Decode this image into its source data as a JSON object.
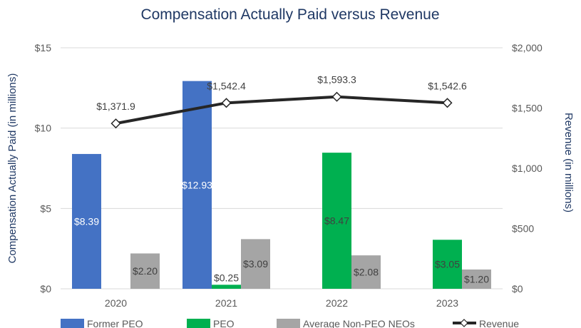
{
  "chart_data": {
    "type": "bar",
    "title": "Compensation Actually Paid versus Revenue",
    "ylabel": "Compensation Actually Paid (in millions)",
    "y2label": "Revenue (in millions)",
    "categories": [
      "2020",
      "2021",
      "2022",
      "2023"
    ],
    "ylim": [
      0,
      15
    ],
    "y2lim": [
      0,
      2000
    ],
    "yticks": [
      "$0",
      "$5",
      "$10",
      "$15"
    ],
    "y2ticks": [
      "$0",
      "$500",
      "$1,000",
      "$1,500",
      "$2,000"
    ],
    "grid": true,
    "legend_position": "bottom",
    "series": [
      {
        "name": "Former PEO",
        "type": "bar",
        "color": "#4472C4",
        "values": [
          8.39,
          12.93,
          null,
          null
        ],
        "labels": [
          "$8.39",
          "$12.93",
          "",
          ""
        ]
      },
      {
        "name": "PEO",
        "type": "bar",
        "color": "#00B050",
        "values": [
          null,
          0.25,
          8.47,
          3.05
        ],
        "labels": [
          "",
          "$0.25",
          "$8.47",
          "$3.05"
        ]
      },
      {
        "name": "Average Non-PEO NEOs",
        "type": "bar",
        "color": "#A5A5A5",
        "values": [
          2.2,
          3.09,
          2.08,
          1.2
        ],
        "labels": [
          "$2.20",
          "$3.09",
          "$2.08",
          "$1.20"
        ]
      },
      {
        "name": "Revenue",
        "type": "line",
        "axis": "right",
        "color": "#262626",
        "values": [
          1371.9,
          1542.4,
          1593.3,
          1542.6
        ],
        "labels": [
          "$1,371.9",
          "$1,542.4",
          "$1,593.3",
          "$1,542.6"
        ]
      }
    ]
  }
}
